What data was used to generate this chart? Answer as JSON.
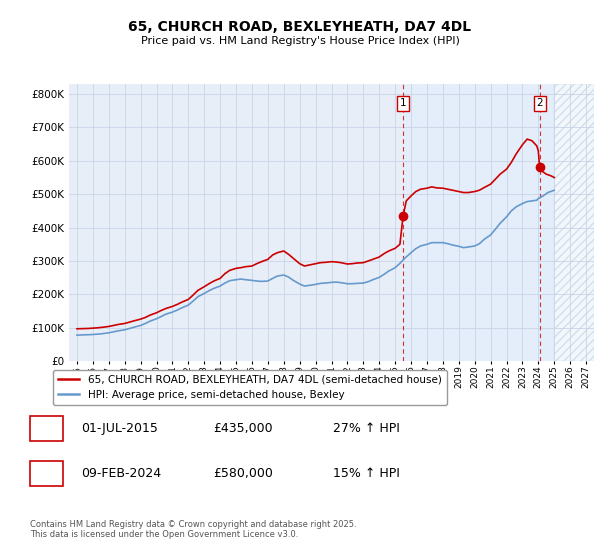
{
  "title": "65, CHURCH ROAD, BEXLEYHEATH, DA7 4DL",
  "subtitle": "Price paid vs. HM Land Registry's House Price Index (HPI)",
  "legend_line1": "65, CHURCH ROAD, BEXLEYHEATH, DA7 4DL (semi-detached house)",
  "legend_line2": "HPI: Average price, semi-detached house, Bexley",
  "annotation1_label": "1",
  "annotation1_date": "01-JUL-2015",
  "annotation1_price": "£435,000",
  "annotation1_hpi": "27% ↑ HPI",
  "annotation2_label": "2",
  "annotation2_date": "09-FEB-2024",
  "annotation2_price": "£580,000",
  "annotation2_hpi": "15% ↑ HPI",
  "footer": "Contains HM Land Registry data © Crown copyright and database right 2025.\nThis data is licensed under the Open Government Licence v3.0.",
  "red_color": "#cc0000",
  "blue_color": "#6699cc",
  "plot_bg_color": "#e8eef8",
  "plot_bg_right_color": "#dde8f5",
  "vline_color": "#cc3333",
  "grid_color": "#c8d4e8",
  "ylim_min": 0,
  "ylim_max": 830000,
  "yticks": [
    0,
    100000,
    200000,
    300000,
    400000,
    500000,
    600000,
    700000,
    800000
  ],
  "ytick_labels": [
    "£0",
    "£100K",
    "£200K",
    "£300K",
    "£400K",
    "£500K",
    "£600K",
    "£700K",
    "£800K"
  ],
  "xmin": 1994.5,
  "xmax": 2027.5,
  "marker1_x": 2015.5,
  "marker1_y": 435000,
  "marker2_x": 2024.08,
  "marker2_y": 580000,
  "hatch_start": 2025.0,
  "red_line": [
    [
      1995.0,
      97000
    ],
    [
      1995.1,
      97200
    ],
    [
      1995.3,
      97500
    ],
    [
      1995.5,
      97800
    ],
    [
      1995.7,
      98000
    ],
    [
      1996.0,
      99000
    ],
    [
      1996.3,
      100000
    ],
    [
      1996.6,
      101500
    ],
    [
      1997.0,
      104000
    ],
    [
      1997.3,
      107000
    ],
    [
      1997.6,
      110000
    ],
    [
      1998.0,
      113000
    ],
    [
      1998.3,
      117000
    ],
    [
      1998.6,
      121000
    ],
    [
      1999.0,
      126000
    ],
    [
      1999.3,
      131000
    ],
    [
      1999.6,
      138000
    ],
    [
      2000.0,
      145000
    ],
    [
      2000.3,
      152000
    ],
    [
      2000.6,
      158000
    ],
    [
      2001.0,
      164000
    ],
    [
      2001.3,
      170000
    ],
    [
      2001.6,
      177000
    ],
    [
      2002.0,
      185000
    ],
    [
      2002.3,
      198000
    ],
    [
      2002.6,
      212000
    ],
    [
      2003.0,
      223000
    ],
    [
      2003.3,
      232000
    ],
    [
      2003.6,
      240000
    ],
    [
      2004.0,
      248000
    ],
    [
      2004.3,
      262000
    ],
    [
      2004.6,
      272000
    ],
    [
      2005.0,
      278000
    ],
    [
      2005.3,
      280000
    ],
    [
      2005.6,
      283000
    ],
    [
      2006.0,
      285000
    ],
    [
      2006.3,
      292000
    ],
    [
      2006.6,
      298000
    ],
    [
      2007.0,
      305000
    ],
    [
      2007.3,
      318000
    ],
    [
      2007.6,
      325000
    ],
    [
      2008.0,
      330000
    ],
    [
      2008.3,
      320000
    ],
    [
      2008.6,
      308000
    ],
    [
      2009.0,
      292000
    ],
    [
      2009.3,
      285000
    ],
    [
      2009.6,
      288000
    ],
    [
      2010.0,
      292000
    ],
    [
      2010.3,
      295000
    ],
    [
      2010.6,
      296000
    ],
    [
      2011.0,
      298000
    ],
    [
      2011.3,
      297000
    ],
    [
      2011.6,
      295000
    ],
    [
      2012.0,
      291000
    ],
    [
      2012.3,
      292000
    ],
    [
      2012.6,
      294000
    ],
    [
      2013.0,
      295000
    ],
    [
      2013.3,
      300000
    ],
    [
      2013.6,
      305000
    ],
    [
      2014.0,
      312000
    ],
    [
      2014.3,
      322000
    ],
    [
      2014.6,
      330000
    ],
    [
      2015.0,
      338000
    ],
    [
      2015.3,
      350000
    ],
    [
      2015.5,
      435000
    ],
    [
      2015.7,
      480000
    ],
    [
      2016.0,
      495000
    ],
    [
      2016.3,
      508000
    ],
    [
      2016.6,
      515000
    ],
    [
      2017.0,
      518000
    ],
    [
      2017.3,
      522000
    ],
    [
      2017.6,
      519000
    ],
    [
      2018.0,
      518000
    ],
    [
      2018.3,
      515000
    ],
    [
      2018.6,
      512000
    ],
    [
      2019.0,
      508000
    ],
    [
      2019.3,
      505000
    ],
    [
      2019.6,
      505000
    ],
    [
      2020.0,
      508000
    ],
    [
      2020.3,
      512000
    ],
    [
      2020.6,
      520000
    ],
    [
      2021.0,
      530000
    ],
    [
      2021.3,
      545000
    ],
    [
      2021.6,
      560000
    ],
    [
      2022.0,
      575000
    ],
    [
      2022.3,
      595000
    ],
    [
      2022.6,
      620000
    ],
    [
      2023.0,
      648000
    ],
    [
      2023.3,
      665000
    ],
    [
      2023.6,
      660000
    ],
    [
      2023.9,
      645000
    ],
    [
      2024.0,
      630000
    ],
    [
      2024.08,
      580000
    ],
    [
      2024.2,
      570000
    ],
    [
      2024.5,
      560000
    ],
    [
      2024.8,
      555000
    ],
    [
      2025.0,
      550000
    ]
  ],
  "blue_line": [
    [
      1995.0,
      78000
    ],
    [
      1995.2,
      78500
    ],
    [
      1995.5,
      79000
    ],
    [
      1995.8,
      79500
    ],
    [
      1996.0,
      80000
    ],
    [
      1996.3,
      81000
    ],
    [
      1996.6,
      82500
    ],
    [
      1997.0,
      85000
    ],
    [
      1997.3,
      88000
    ],
    [
      1997.6,
      91000
    ],
    [
      1998.0,
      94000
    ],
    [
      1998.3,
      98000
    ],
    [
      1998.6,
      102000
    ],
    [
      1999.0,
      107000
    ],
    [
      1999.3,
      113000
    ],
    [
      1999.6,
      120000
    ],
    [
      2000.0,
      127000
    ],
    [
      2000.3,
      134000
    ],
    [
      2000.6,
      141000
    ],
    [
      2001.0,
      147000
    ],
    [
      2001.3,
      153000
    ],
    [
      2001.6,
      160000
    ],
    [
      2002.0,
      168000
    ],
    [
      2002.3,
      180000
    ],
    [
      2002.6,
      193000
    ],
    [
      2003.0,
      203000
    ],
    [
      2003.3,
      211000
    ],
    [
      2003.6,
      218000
    ],
    [
      2004.0,
      225000
    ],
    [
      2004.3,
      234000
    ],
    [
      2004.6,
      241000
    ],
    [
      2005.0,
      244000
    ],
    [
      2005.3,
      246000
    ],
    [
      2005.6,
      244000
    ],
    [
      2006.0,
      242000
    ],
    [
      2006.3,
      240000
    ],
    [
      2006.6,
      239000
    ],
    [
      2007.0,
      240000
    ],
    [
      2007.3,
      248000
    ],
    [
      2007.6,
      255000
    ],
    [
      2008.0,
      258000
    ],
    [
      2008.3,
      252000
    ],
    [
      2008.6,
      242000
    ],
    [
      2009.0,
      231000
    ],
    [
      2009.3,
      225000
    ],
    [
      2009.6,
      227000
    ],
    [
      2010.0,
      230000
    ],
    [
      2010.3,
      233000
    ],
    [
      2010.6,
      234000
    ],
    [
      2011.0,
      236000
    ],
    [
      2011.3,
      237000
    ],
    [
      2011.6,
      235000
    ],
    [
      2012.0,
      232000
    ],
    [
      2012.3,
      232000
    ],
    [
      2012.6,
      233000
    ],
    [
      2013.0,
      234000
    ],
    [
      2013.3,
      238000
    ],
    [
      2013.6,
      244000
    ],
    [
      2014.0,
      251000
    ],
    [
      2014.3,
      260000
    ],
    [
      2014.6,
      270000
    ],
    [
      2015.0,
      280000
    ],
    [
      2015.3,
      293000
    ],
    [
      2015.6,
      308000
    ],
    [
      2016.0,
      325000
    ],
    [
      2016.3,
      337000
    ],
    [
      2016.6,
      345000
    ],
    [
      2017.0,
      350000
    ],
    [
      2017.3,
      355000
    ],
    [
      2017.6,
      355000
    ],
    [
      2018.0,
      355000
    ],
    [
      2018.3,
      352000
    ],
    [
      2018.6,
      348000
    ],
    [
      2019.0,
      344000
    ],
    [
      2019.3,
      340000
    ],
    [
      2019.6,
      342000
    ],
    [
      2020.0,
      345000
    ],
    [
      2020.3,
      352000
    ],
    [
      2020.6,
      365000
    ],
    [
      2021.0,
      378000
    ],
    [
      2021.3,
      395000
    ],
    [
      2021.6,
      413000
    ],
    [
      2022.0,
      432000
    ],
    [
      2022.3,
      450000
    ],
    [
      2022.6,
      462000
    ],
    [
      2023.0,
      472000
    ],
    [
      2023.3,
      478000
    ],
    [
      2023.6,
      480000
    ],
    [
      2023.9,
      482000
    ],
    [
      2024.0,
      487000
    ],
    [
      2024.3,
      495000
    ],
    [
      2024.6,
      505000
    ],
    [
      2024.9,
      510000
    ],
    [
      2025.0,
      512000
    ]
  ]
}
